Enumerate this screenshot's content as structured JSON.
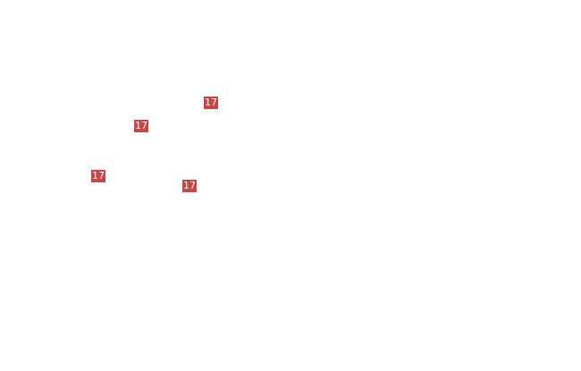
{
  "markers": [
    {
      "label": "17"
    },
    {
      "label": "17"
    },
    {
      "label": "17"
    },
    {
      "label": "17"
    }
  ],
  "colors": {
    "marker": "#cc4444",
    "background": "#ffffff"
  }
}
